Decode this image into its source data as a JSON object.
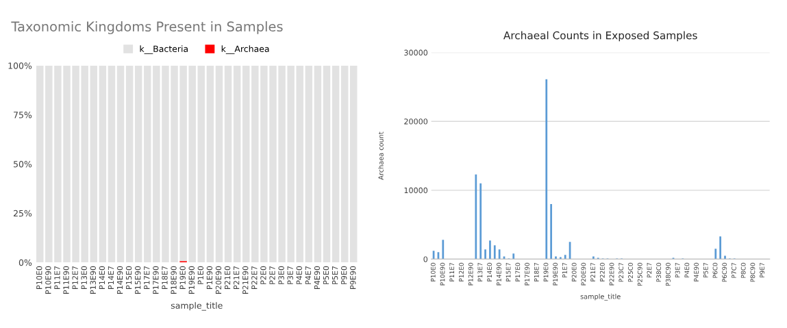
{
  "chart_data": [
    {
      "type": "bar",
      "title": "Taxonomic Kingdoms Present in Samples",
      "xlabel": "sample_title",
      "stacked": true,
      "legend": "top",
      "grid": false,
      "categories": [
        "P10E0",
        "P10E90",
        "P11E7",
        "P11E90",
        "P12E7",
        "P13E0",
        "P13E90",
        "P14E0",
        "P14E7",
        "P14E90",
        "P15E0",
        "P15E90",
        "P17E7",
        "P17E90",
        "P18E7",
        "P18E90",
        "P19E0",
        "P19E90",
        "P1E0",
        "P1E90",
        "P20E90",
        "P21E0",
        "P21E7",
        "P21E90",
        "P22E7",
        "P2E0",
        "P2E7",
        "P3E0",
        "P3E7",
        "P4E0",
        "P4E7",
        "P4E90",
        "P5E0",
        "P5E7",
        "P9E0",
        "P9E90"
      ],
      "series": [
        {
          "name": "k__Archaea",
          "color": "#ff0000",
          "values": [
            0,
            0,
            0,
            0,
            0,
            0,
            0,
            0,
            0,
            0,
            0,
            0,
            0,
            0,
            0,
            0,
            0.7,
            0,
            0,
            0,
            0,
            0,
            0,
            0,
            0,
            0,
            0,
            0,
            0,
            0,
            0,
            0,
            0,
            0,
            0,
            0
          ]
        },
        {
          "name": "k__Bacteria",
          "color": "#e2e2e2",
          "values": [
            100,
            100,
            100,
            100,
            100,
            100,
            100,
            100,
            100,
            100,
            100,
            100,
            100,
            100,
            100,
            100,
            99.3,
            100,
            100,
            100,
            100,
            100,
            100,
            100,
            100,
            100,
            100,
            100,
            100,
            100,
            100,
            100,
            100,
            100,
            100,
            100
          ]
        }
      ],
      "ylim": [
        0,
        100
      ],
      "yticks": [
        {
          "value": 0,
          "label": "0%"
        },
        {
          "value": 25,
          "label": "25%"
        },
        {
          "value": 50,
          "label": "50%"
        },
        {
          "value": 75,
          "label": "75%"
        },
        {
          "value": 100,
          "label": "100%"
        }
      ]
    },
    {
      "type": "bar",
      "title": "Archaeal Counts in Exposed Samples",
      "xlabel": "sample_title",
      "ylabel": "Archaea count",
      "grid": "y",
      "categories": [
        "P10E0",
        null,
        "P10E90",
        null,
        "P11E7",
        null,
        "P12E0",
        null,
        "P12E90",
        null,
        "P13E7",
        null,
        "P14E0",
        null,
        "P14E90",
        null,
        "P15E7",
        null,
        "P17E0",
        null,
        "P17E90",
        null,
        "P18E7",
        null,
        "P19E0",
        null,
        "P19E90",
        null,
        "P1E7",
        null,
        "P20E0",
        null,
        "P20E90",
        null,
        "P21E7",
        null,
        "P22E0",
        null,
        "P22E90",
        null,
        "P23C7",
        null,
        "P25C0",
        null,
        "P25C90",
        null,
        "P2E7",
        null,
        "P38C0",
        null,
        "P38C90",
        null,
        "P3E7",
        null,
        "P4E0",
        null,
        "P4E90",
        null,
        "P5E7",
        null,
        "P6C0",
        null,
        "P6C90",
        null,
        "P7C7",
        null,
        "P8C0",
        null,
        "P8C90",
        null,
        "P9E7",
        null
      ],
      "series": [
        {
          "color": "#5b9bd5",
          "values": [
            1200,
            1000,
            2800,
            0,
            0,
            0,
            0,
            0,
            0,
            12300,
            11000,
            1400,
            2700,
            2000,
            1400,
            400,
            100,
            800,
            0,
            0,
            0,
            0,
            0,
            0,
            26100,
            8000,
            400,
            300,
            600,
            2500,
            0,
            0,
            0,
            0,
            400,
            200,
            100,
            100,
            0,
            100,
            100,
            0,
            0,
            0,
            0,
            0,
            0,
            0,
            0,
            0,
            0,
            200,
            0,
            100,
            0,
            0,
            0,
            0,
            0,
            0,
            1500,
            3300,
            500,
            100,
            100,
            0,
            0,
            0,
            0,
            0,
            0,
            0
          ]
        }
      ],
      "ylim": [
        0,
        30000
      ],
      "yticks": [
        0,
        10000,
        20000,
        30000
      ]
    }
  ]
}
